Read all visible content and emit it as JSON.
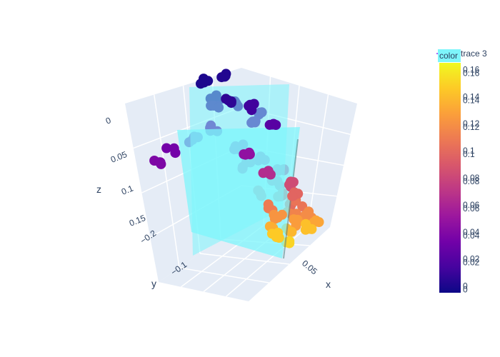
{
  "chart_data": {
    "type": "scatter",
    "projection": "3d",
    "axes": {
      "x": {
        "title": "x",
        "tick_labels": [
          "0.05"
        ]
      },
      "y": {
        "title": "y",
        "tick_labels": [
          "−0.2",
          "−0.1"
        ]
      },
      "z": {
        "title": "z",
        "tick_labels": [
          "0",
          "0.05",
          "0.1",
          "0.15"
        ],
        "reversed": true
      }
    },
    "colorscale": [
      "#0d0887",
      "#46039f",
      "#7201a8",
      "#9c179e",
      "#bd3786",
      "#d8576b",
      "#ed7953",
      "#fb9f3a",
      "#fdca26",
      "#f0f921"
    ],
    "colorbar": {
      "range": [
        -0.005,
        0.165
      ],
      "tick_values": [
        0,
        0.02,
        0.04,
        0.06,
        0.08,
        0.1,
        0.12,
        0.14,
        0.16
      ],
      "tick_labels_primary": [
        "0",
        "0.02",
        "0.04",
        "0.06",
        "0.08",
        "0.1",
        "0.12",
        "0.14",
        "0.16"
      ],
      "tick_labels_secondary": [
        "0",
        "0.02",
        "0.04",
        "0.06",
        "0.08",
        "0.1",
        "0.12",
        "0.14",
        "0.16"
      ]
    },
    "hover_label": "color",
    "legend": [
      {
        "name": "trace 3",
        "symbol": "line",
        "color": "#ab63fa"
      }
    ],
    "planes": [
      {
        "name": "plane-1",
        "color": "#7ef5fb",
        "opacity": 0.75
      },
      {
        "name": "plane-2",
        "color": "#7ef5fb",
        "opacity": 0.75
      }
    ],
    "path_color_values": [
      0.0,
      0.005,
      0.01,
      0.015,
      0.025,
      0.035,
      0.045,
      0.06,
      0.075,
      0.09,
      0.1,
      0.11,
      0.12,
      0.13,
      0.14,
      0.15
    ]
  },
  "colors": {
    "background": "#e5ecf6",
    "grid": "#ffffff",
    "plane": "#7ef5fb"
  }
}
